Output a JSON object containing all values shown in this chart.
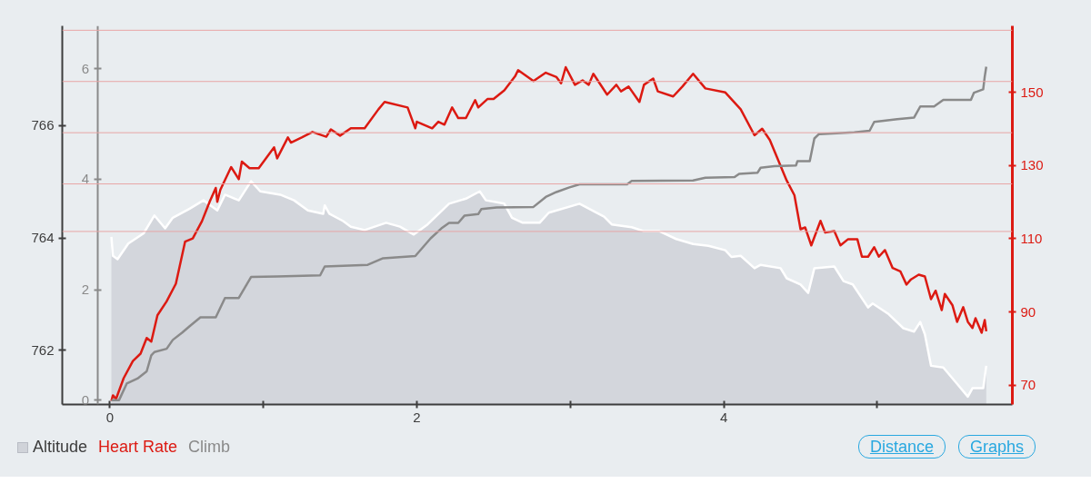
{
  "chart_data": {
    "type": "line",
    "legend": "bottom left",
    "grid": false,
    "xlim": [
      -0.31,
      5.88
    ],
    "xticks": [
      0,
      {
        "value": 1,
        "label": null
      },
      2,
      {
        "value": 3,
        "label": null
      },
      4,
      {
        "value": 5,
        "label": null
      }
    ],
    "ylim": [
      761.03,
      767.78
    ],
    "yticks": [
      762,
      764,
      766
    ],
    "y2lim": [
      64.7,
      168.2
    ],
    "y2ticks": [
      70,
      90,
      110,
      130,
      150
    ],
    "y3lim": [
      -0.08,
      6.78
    ],
    "y3ticks": [
      0,
      2,
      4,
      6
    ],
    "ref_lines": [
      {
        "axis": "y2",
        "value": 167,
        "color": "#e8a5a5"
      },
      {
        "axis": "y2",
        "value": 153,
        "color": "#e8a5a5"
      },
      {
        "axis": "y2",
        "value": 139,
        "color": "#e8a5a5"
      },
      {
        "axis": "y2",
        "value": 125,
        "color": "#e8a5a5"
      },
      {
        "axis": "y2",
        "value": 112,
        "color": "#e8a5a5"
      }
    ],
    "series": [
      {
        "name": "Altitude",
        "type": "area",
        "color": "#d0d3d9",
        "x": [
          0.01,
          0.02,
          0.05,
          0.12,
          0.22,
          0.29,
          0.36,
          0.41,
          0.52,
          0.61,
          0.7,
          0.75,
          0.84,
          0.92,
          0.98,
          1.11,
          1.2,
          1.29,
          1.39,
          1.4,
          1.43,
          1.52,
          1.57,
          1.66,
          1.8,
          1.89,
          1.98,
          2.07,
          2.21,
          2.32,
          2.41,
          2.45,
          2.57,
          2.62,
          2.69,
          2.8,
          2.86,
          3.06,
          3.22,
          3.27,
          3.4,
          3.48,
          3.58,
          3.69,
          3.8,
          3.9,
          4.01,
          4.05,
          4.11,
          4.2,
          4.24,
          4.37,
          4.41,
          4.5,
          4.55,
          4.59,
          4.72,
          4.78,
          4.84,
          4.94,
          4.97,
          5.07,
          5.17,
          5.24,
          5.28,
          5.31,
          5.35,
          5.43,
          5.51,
          5.59,
          5.62,
          5.69,
          5.71
        ],
        "values": [
          764.02,
          763.68,
          763.62,
          763.9,
          764.08,
          764.4,
          764.17,
          764.36,
          764.52,
          764.67,
          764.49,
          764.77,
          764.67,
          765.01,
          764.83,
          764.77,
          764.67,
          764.49,
          764.43,
          764.58,
          764.43,
          764.3,
          764.2,
          764.14,
          764.27,
          764.2,
          764.06,
          764.24,
          764.61,
          764.7,
          764.83,
          764.67,
          764.61,
          764.36,
          764.27,
          764.27,
          764.45,
          764.61,
          764.38,
          764.24,
          764.19,
          764.12,
          764.12,
          763.98,
          763.89,
          763.86,
          763.78,
          763.66,
          763.68,
          763.46,
          763.52,
          763.46,
          763.28,
          763.17,
          763.02,
          763.46,
          763.49,
          763.23,
          763.17,
          762.76,
          762.83,
          762.65,
          762.39,
          762.33,
          762.5,
          762.28,
          761.72,
          761.69,
          761.43,
          761.17,
          761.32,
          761.32,
          761.72
        ]
      },
      {
        "name": "Heart Rate",
        "color": "#dc1a12",
        "axis": "y2",
        "x": [
          0.01,
          0.02,
          0.04,
          0.09,
          0.15,
          0.2,
          0.24,
          0.27,
          0.31,
          0.37,
          0.43,
          0.49,
          0.54,
          0.6,
          0.65,
          0.69,
          0.7,
          0.72,
          0.79,
          0.84,
          0.86,
          0.91,
          0.97,
          1.07,
          1.09,
          1.16,
          1.18,
          1.25,
          1.32,
          1.41,
          1.44,
          1.5,
          1.57,
          1.66,
          1.75,
          1.79,
          1.94,
          1.99,
          2.0,
          2.1,
          2.14,
          2.18,
          2.23,
          2.27,
          2.32,
          2.38,
          2.4,
          2.46,
          2.5,
          2.57,
          2.64,
          2.66,
          2.76,
          2.84,
          2.91,
          2.94,
          2.97,
          3.03,
          3.08,
          3.12,
          3.15,
          3.24,
          3.3,
          3.33,
          3.38,
          3.45,
          3.48,
          3.54,
          3.57,
          3.67,
          3.73,
          3.8,
          3.88,
          4.01,
          4.11,
          4.2,
          4.25,
          4.3,
          4.41,
          4.46,
          4.5,
          4.53,
          4.57,
          4.63,
          4.66,
          4.72,
          4.76,
          4.81,
          4.87,
          4.9,
          4.94,
          4.98,
          5.01,
          5.05,
          5.1,
          5.15,
          5.19,
          5.22,
          5.27,
          5.31,
          5.35,
          5.38,
          5.42,
          5.44,
          5.49,
          5.52,
          5.56,
          5.59,
          5.62,
          5.64,
          5.68,
          5.7,
          5.71
        ],
        "values": [
          65.7,
          67.2,
          66.2,
          71.9,
          76.6,
          78.6,
          82.9,
          81.9,
          89.1,
          92.9,
          97.7,
          109.2,
          110.1,
          114.8,
          120.1,
          123.9,
          120.1,
          123.4,
          129.6,
          126.3,
          131.1,
          129.3,
          129.3,
          135.0,
          132.0,
          137.7,
          136.3,
          137.7,
          139.2,
          137.9,
          139.9,
          138.2,
          140.2,
          140.2,
          145.4,
          147.4,
          145.9,
          140.2,
          142.0,
          140.2,
          142.0,
          141.2,
          145.9,
          143.0,
          143.0,
          147.9,
          145.9,
          148.2,
          148.2,
          150.6,
          154.4,
          156.1,
          153.1,
          155.4,
          154.2,
          152.5,
          156.9,
          152.1,
          153.3,
          152.1,
          155.1,
          149.4,
          152.1,
          150.3,
          151.6,
          147.4,
          152.1,
          153.8,
          150.3,
          148.9,
          151.6,
          155.1,
          151.1,
          150.0,
          145.4,
          138.3,
          140.1,
          137.0,
          125.9,
          121.9,
          112.6,
          113.1,
          108.2,
          114.9,
          111.7,
          112.1,
          108.2,
          109.9,
          109.9,
          105.1,
          105.1,
          107.7,
          105.1,
          106.9,
          102.0,
          101.1,
          97.5,
          98.9,
          100.2,
          99.7,
          93.5,
          95.8,
          90.5,
          94.9,
          91.8,
          87.3,
          91.3,
          87.3,
          85.6,
          88.3,
          84.3,
          87.8,
          84.7
        ]
      },
      {
        "name": "Climb",
        "color": "#8a8a8a",
        "axis": "y3",
        "x": [
          0.01,
          0.06,
          0.11,
          0.18,
          0.24,
          0.27,
          0.29,
          0.37,
          0.41,
          0.47,
          0.52,
          0.59,
          0.69,
          0.75,
          0.84,
          0.92,
          1.09,
          1.37,
          1.4,
          1.68,
          1.78,
          1.99,
          2.09,
          2.16,
          2.21,
          2.27,
          2.31,
          2.4,
          2.42,
          2.52,
          2.76,
          2.84,
          2.91,
          2.99,
          3.06,
          3.37,
          3.4,
          3.8,
          3.88,
          4.07,
          4.1,
          4.22,
          4.24,
          4.33,
          4.47,
          4.48,
          4.56,
          4.59,
          4.62,
          4.85,
          4.95,
          4.98,
          5.13,
          5.24,
          5.28,
          5.37,
          5.43,
          5.61,
          5.63,
          5.69,
          5.7,
          5.71
        ],
        "values": [
          0,
          0,
          0.3,
          0.39,
          0.52,
          0.81,
          0.87,
          0.93,
          1.09,
          1.22,
          1.34,
          1.5,
          1.5,
          1.85,
          1.85,
          2.23,
          2.24,
          2.26,
          2.42,
          2.45,
          2.57,
          2.61,
          2.93,
          3.11,
          3.21,
          3.21,
          3.34,
          3.37,
          3.46,
          3.49,
          3.5,
          3.68,
          3.77,
          3.85,
          3.91,
          3.91,
          3.97,
          3.98,
          4.03,
          4.04,
          4.1,
          4.12,
          4.21,
          4.24,
          4.25,
          4.33,
          4.33,
          4.74,
          4.82,
          4.85,
          4.88,
          5.04,
          5.09,
          5.12,
          5.32,
          5.32,
          5.44,
          5.44,
          5.57,
          5.63,
          5.86,
          6.04
        ]
      }
    ],
    "annotations": [
      "Distance",
      "Graphs"
    ]
  }
}
